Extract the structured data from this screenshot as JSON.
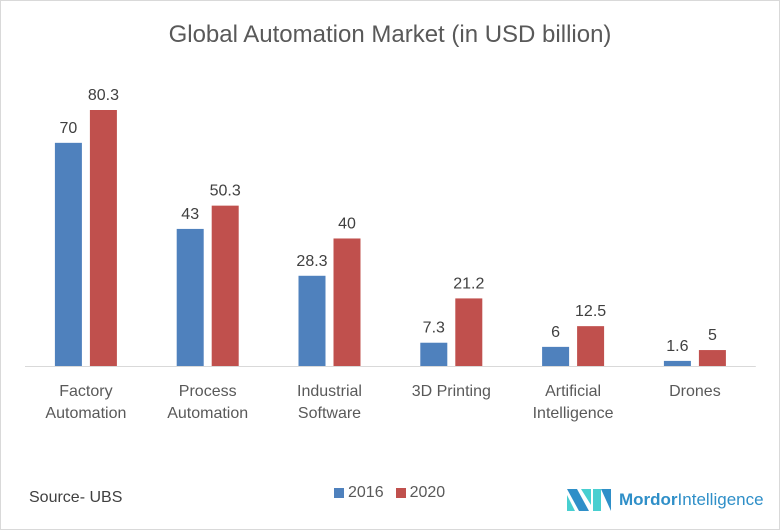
{
  "chart_data": {
    "type": "bar",
    "title": "Global Automation Market (in USD billion)",
    "categories": [
      [
        "Factory",
        "Automation"
      ],
      [
        "Process",
        "Automation"
      ],
      [
        "Industrial",
        "Software"
      ],
      [
        "3D Printing"
      ],
      [
        "Artificial",
        "Intelligence"
      ],
      [
        "Drones"
      ]
    ],
    "series": [
      {
        "name": "2016",
        "color": "#4f81bd",
        "values": [
          70,
          43,
          28.3,
          7.3,
          6,
          1.6
        ],
        "labels": [
          "70",
          "43",
          "28.3",
          "7.3",
          "6",
          "1.6"
        ]
      },
      {
        "name": "2020",
        "color": "#c0504d",
        "values": [
          80.3,
          50.3,
          40,
          21.2,
          12.5,
          5
        ],
        "labels": [
          "80.3",
          "50.3",
          "40",
          "21.2",
          "12.5",
          "5"
        ]
      }
    ],
    "ylim": [
      0,
      80.3
    ],
    "grid": false,
    "legend": "bottom"
  },
  "source": "Source- UBS",
  "logo": {
    "bold": "Mordor",
    "rest": "Intelligence"
  }
}
